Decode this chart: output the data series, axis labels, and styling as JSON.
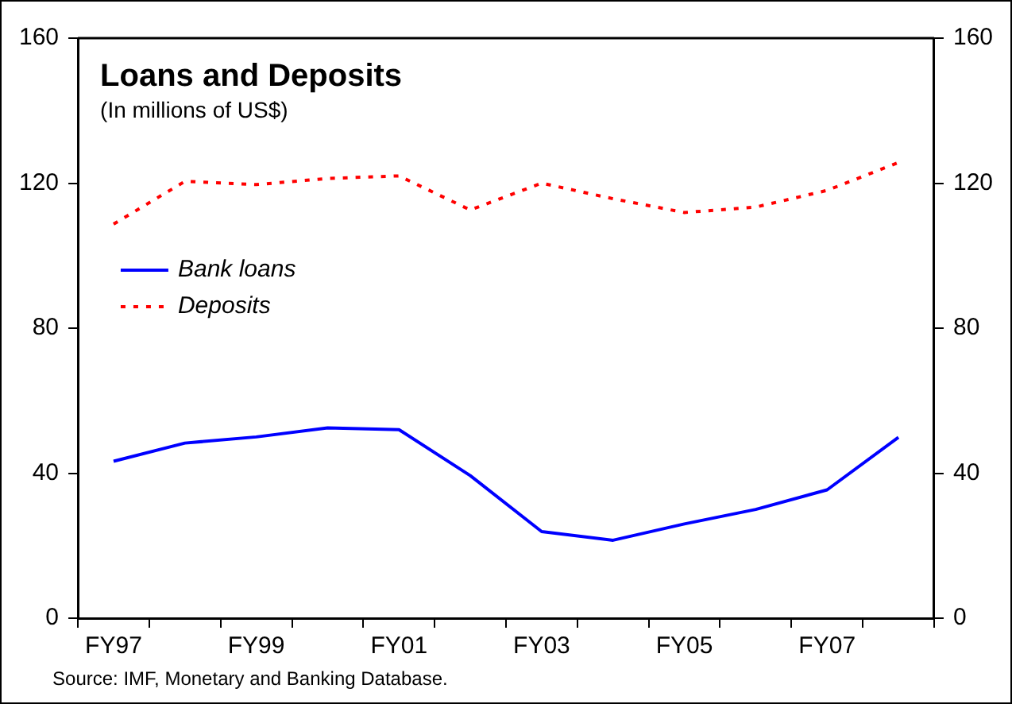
{
  "chart_data": {
    "type": "line",
    "title": "Loans and Deposits",
    "subtitle": "(In millions of US$)",
    "categories": [
      "FY97",
      null,
      "FY99",
      null,
      "FY01",
      null,
      "FY03",
      null,
      "FY05",
      null,
      "FY07",
      null
    ],
    "series": [
      {
        "name": "Bank loans",
        "color": "#0000ff",
        "line_style": "solid",
        "values": [
          43.3,
          48.3,
          50,
          52.5,
          52,
          39.3,
          23.9,
          21.5,
          26,
          30,
          35.4,
          49.9
        ]
      },
      {
        "name": "Deposits",
        "color": "#ff0000",
        "line_style": "dotted",
        "values": [
          108.7,
          120.5,
          119.6,
          121.3,
          122,
          112.6,
          120,
          115.7,
          111.9,
          113.4,
          118,
          125.7
        ]
      }
    ],
    "ylim": [
      0,
      160
    ],
    "yticks": [
      0,
      40,
      80,
      120,
      160
    ],
    "y2lim": [
      0,
      160
    ],
    "y2ticks": [
      0,
      40,
      80,
      120,
      160
    ],
    "grid": false,
    "legend": "left",
    "marker": "none",
    "annotations": [
      "Source: IMF, Monetary and Banking Database."
    ]
  }
}
